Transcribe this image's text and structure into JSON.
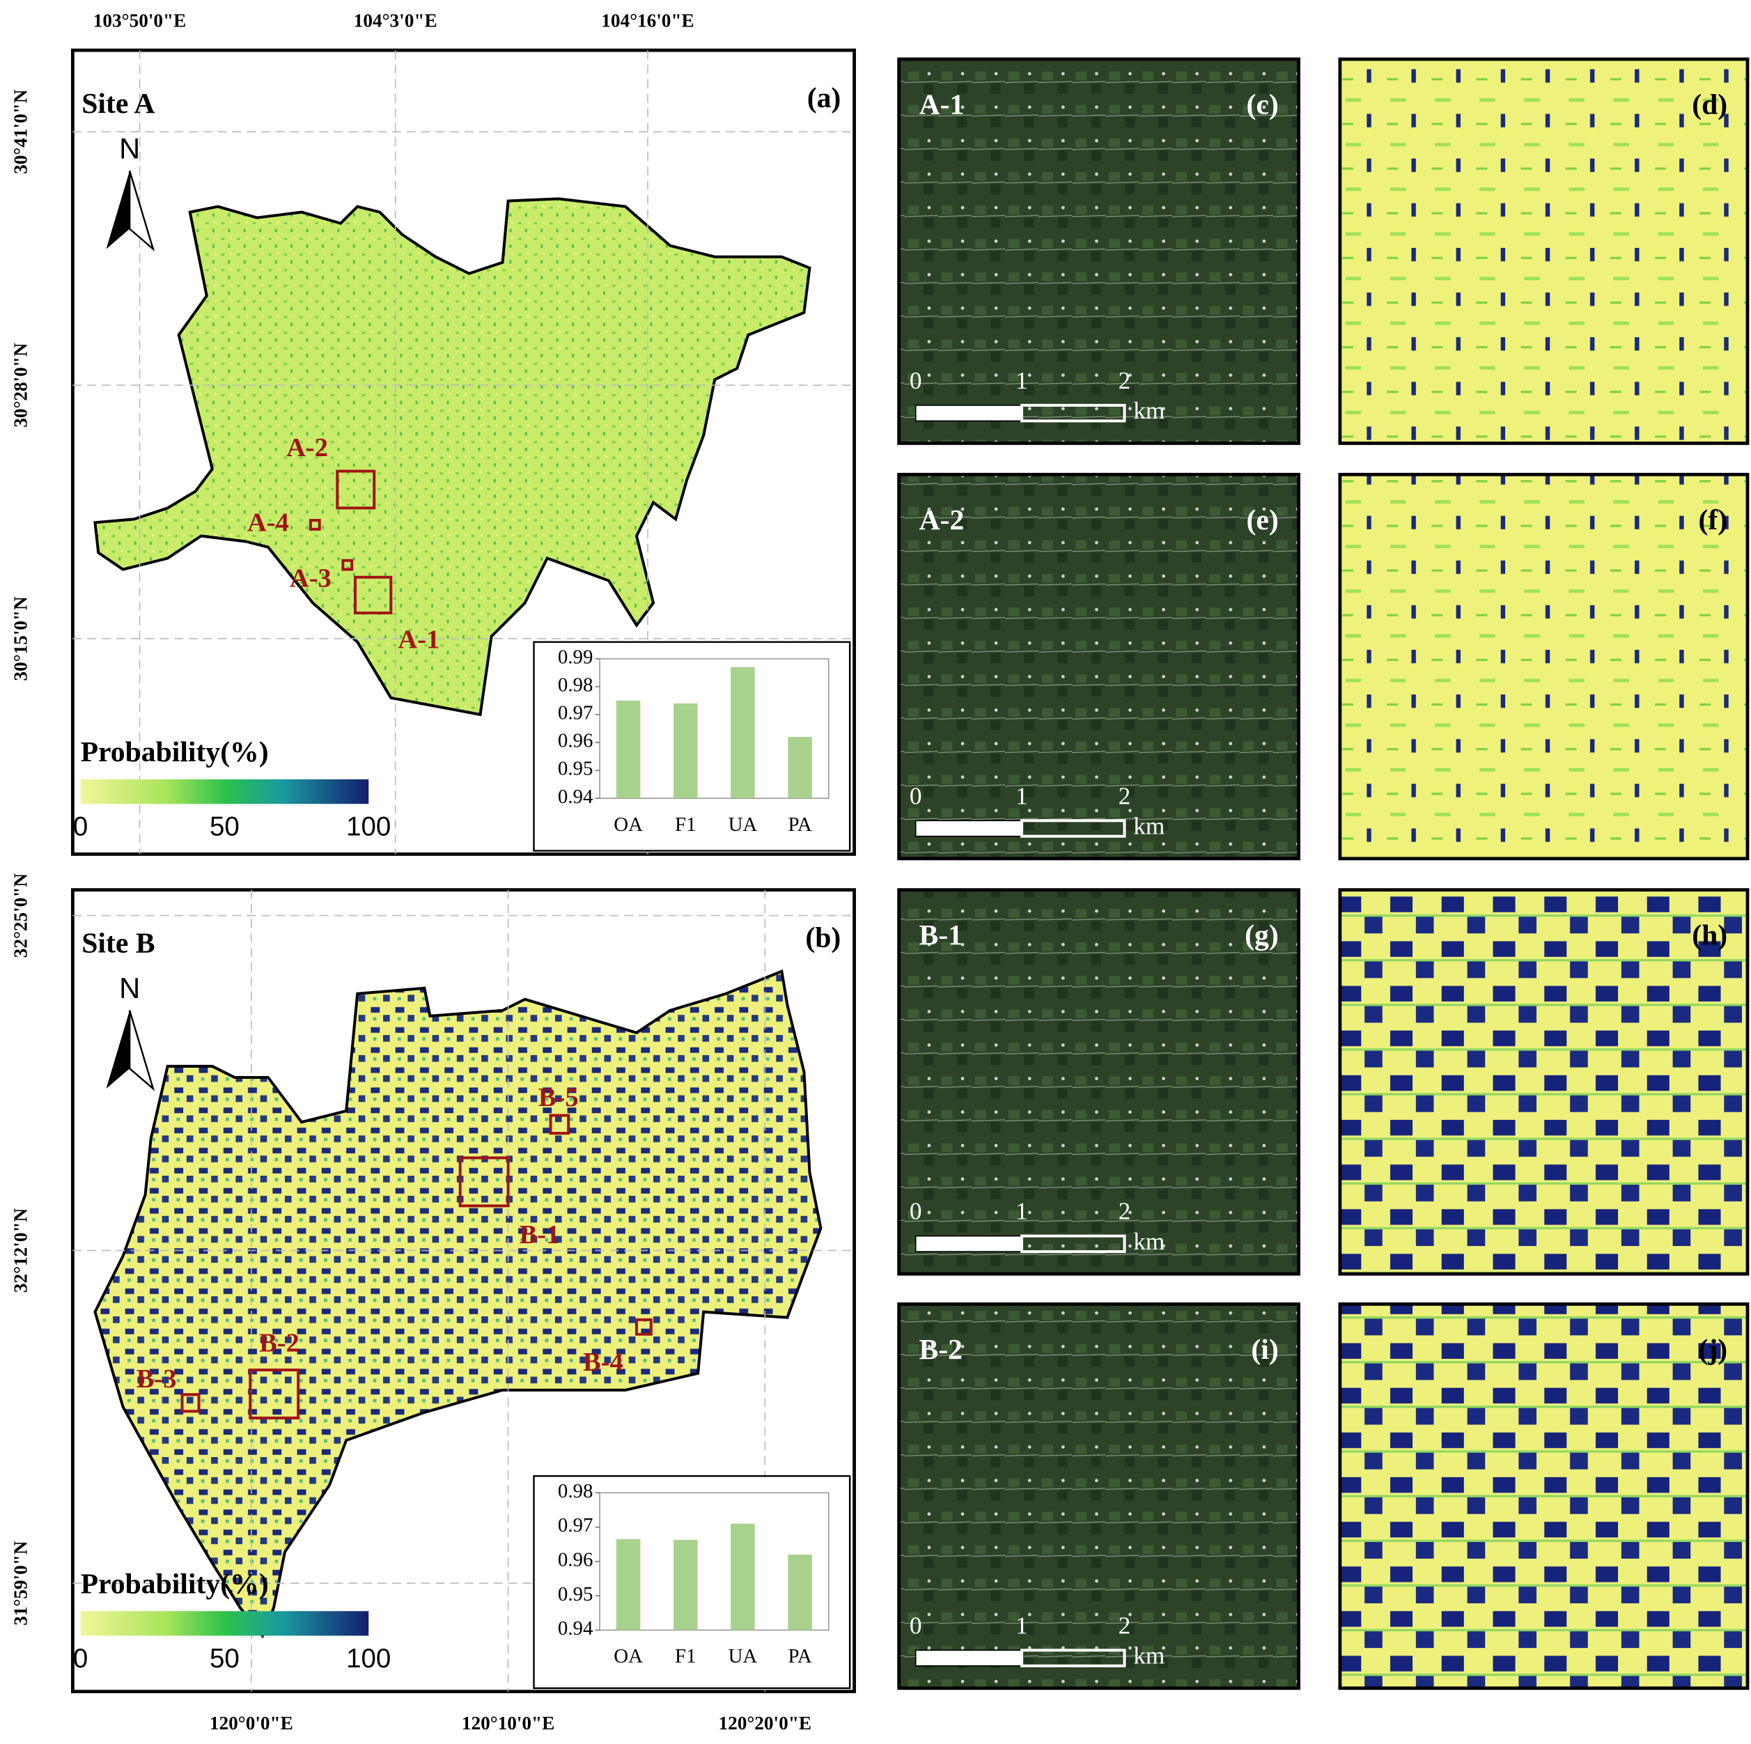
{
  "north": "N",
  "scale_bar": {
    "ticks": [
      "0",
      "1",
      "2"
    ],
    "unit": "km"
  },
  "panels": [
    {
      "site": "Site A",
      "label": "(a)",
      "lon_ticks": [
        "103°50'0\"E",
        "104°3'0\"E",
        "104°16'0\"E"
      ],
      "lat_ticks": [
        "30°41'0\"N",
        "30°28'0\"N",
        "30°15'0\"N"
      ],
      "boxes": [
        "A-1",
        "A-2",
        "A-3",
        "A-4"
      ],
      "legend": {
        "title": "Probability(%)",
        "range": [
          0,
          100
        ],
        "ticks": [
          0,
          50,
          100
        ]
      },
      "inset": {
        "type": "bar",
        "categories": [
          "OA",
          "F1",
          "UA",
          "PA"
        ],
        "values": [
          0.975,
          0.974,
          0.987,
          0.962
        ],
        "color": "#a9d18e",
        "ylim": [
          0.94,
          0.99
        ],
        "yticks": [
          0.94,
          0.95,
          0.96,
          0.97,
          0.98,
          0.99
        ]
      }
    },
    {
      "site": "Site B",
      "label": "(b)",
      "lon_ticks": [
        "120°0'0\"E",
        "120°10'0\"E",
        "120°20'0\"E"
      ],
      "lat_ticks": [
        "32°25'0\"N",
        "32°12'0\"N",
        "31°59'0\"N"
      ],
      "boxes": [
        "B-1",
        "B-2",
        "B-3",
        "B-4",
        "B-5"
      ],
      "legend": {
        "title": "Probability(%)",
        "range": [
          0,
          100
        ],
        "ticks": [
          0,
          50,
          100
        ]
      },
      "inset": {
        "type": "bar",
        "categories": [
          "OA",
          "F1",
          "UA",
          "PA"
        ],
        "values": [
          0.9665,
          0.9663,
          0.971,
          0.962
        ],
        "color": "#a9d18e",
        "ylim": [
          0.94,
          0.98
        ],
        "yticks": [
          0.94,
          0.95,
          0.96,
          0.97,
          0.98
        ]
      }
    }
  ],
  "zooms": [
    {
      "name": "A-1",
      "label": "(c)"
    },
    {
      "label": "(d)"
    },
    {
      "name": "A-2",
      "label": "(e)"
    },
    {
      "label": "(f)"
    },
    {
      "name": "B-1",
      "label": "(g)"
    },
    {
      "label": "(h)"
    },
    {
      "name": "B-2",
      "label": "(i)"
    },
    {
      "label": "(j)"
    }
  ]
}
